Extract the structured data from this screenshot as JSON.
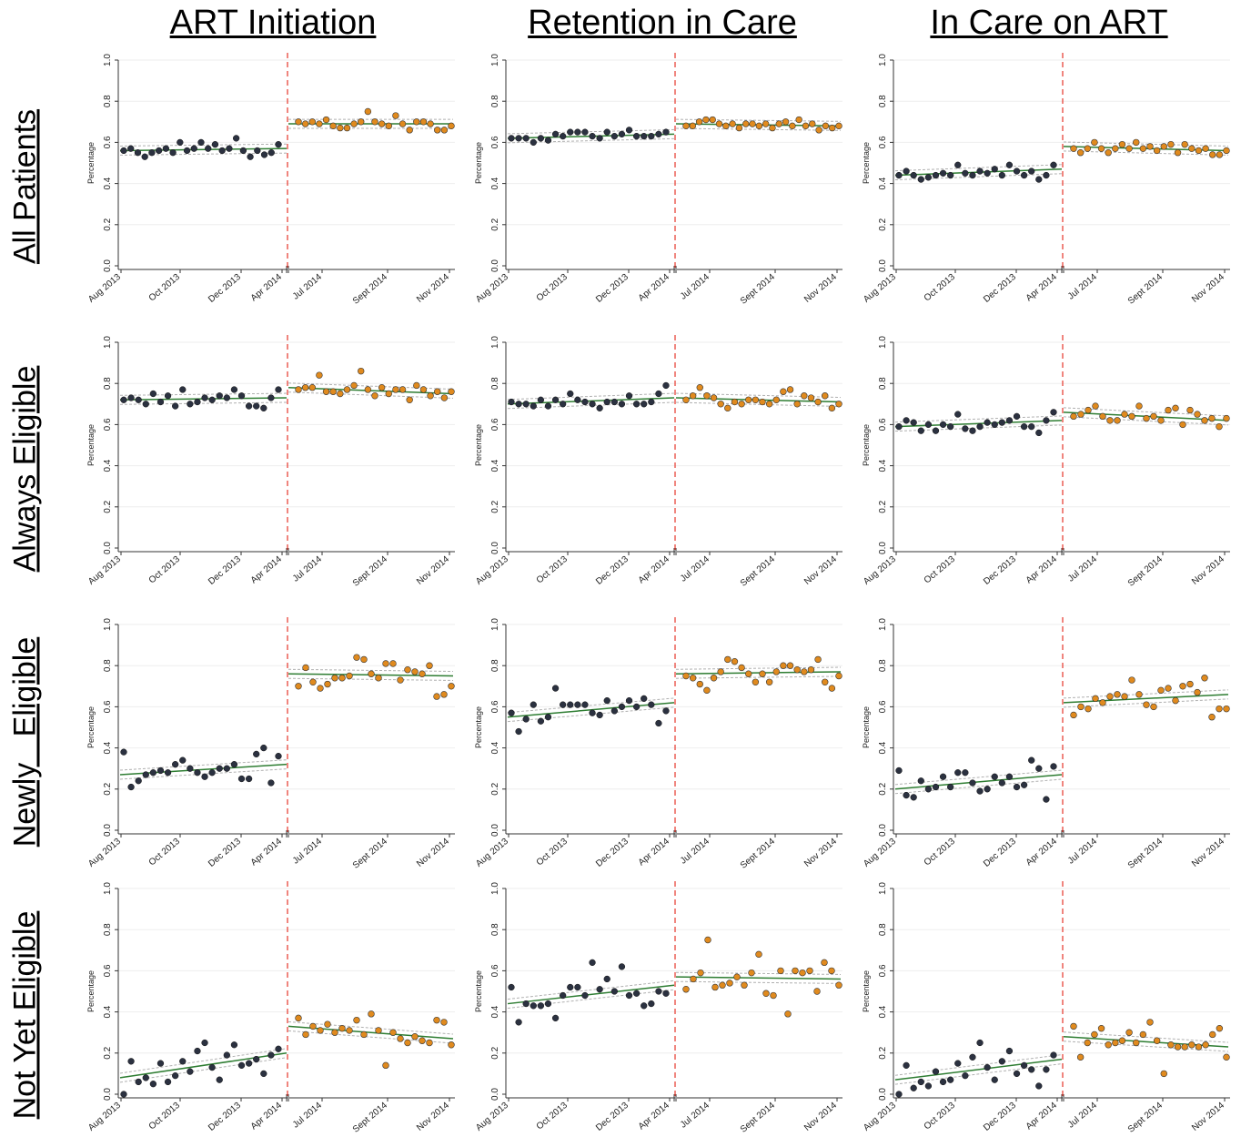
{
  "column_titles": [
    "ART Initiation",
    "Retention in Care",
    "In Care on ART"
  ],
  "row_titles": [
    "All Patients",
    "Always Eligible",
    "Newly   Eligible",
    "Not Yet Eligible"
  ],
  "y_axis_label": "Percentage",
  "y_ticks": [
    "0.0",
    "0.2",
    "0.4",
    "0.6",
    "0.8",
    "1.0"
  ],
  "x_ticks_pre": [
    "Aug 2013",
    "Oct 2013",
    "Dec 2013",
    "Apr 2014"
  ],
  "x_ticks_post": [
    "Jul 2014",
    "Sept 2014",
    "Nov 2014"
  ],
  "colors": {
    "pre": "#2b3140",
    "post": "#e08a1e",
    "fit": "#2e7d32",
    "ci": "#b0b0b0",
    "cutoff": "#e8443a"
  },
  "chart_data": [
    {
      "type": "scatter",
      "row": "All Patients",
      "col": "ART Initiation",
      "ylim": [
        0,
        1
      ],
      "pre": [
        0.56,
        0.57,
        0.55,
        0.53,
        0.55,
        0.56,
        0.57,
        0.55,
        0.6,
        0.56,
        0.57,
        0.6,
        0.57,
        0.59,
        0.56,
        0.57,
        0.62,
        0.56,
        0.53,
        0.56,
        0.54,
        0.55,
        0.59
      ],
      "post": [
        0.7,
        0.69,
        0.7,
        0.69,
        0.71,
        0.68,
        0.67,
        0.67,
        0.69,
        0.7,
        0.75,
        0.7,
        0.69,
        0.68,
        0.73,
        0.69,
        0.66,
        0.7,
        0.7,
        0.69,
        0.66,
        0.66,
        0.68
      ],
      "fit_pre": [
        0.56,
        0.57
      ],
      "fit_post": [
        0.69,
        0.69
      ]
    },
    {
      "type": "scatter",
      "row": "All Patients",
      "col": "Retention in Care",
      "ylim": [
        0,
        1
      ],
      "pre": [
        0.62,
        0.62,
        0.62,
        0.6,
        0.62,
        0.61,
        0.64,
        0.63,
        0.65,
        0.65,
        0.65,
        0.63,
        0.62,
        0.65,
        0.63,
        0.64,
        0.66,
        0.63,
        0.63,
        0.63,
        0.64,
        0.65
      ],
      "post": [
        0.68,
        0.68,
        0.7,
        0.71,
        0.71,
        0.69,
        0.68,
        0.69,
        0.67,
        0.69,
        0.69,
        0.68,
        0.69,
        0.67,
        0.69,
        0.7,
        0.68,
        0.71,
        0.68,
        0.69,
        0.66,
        0.68,
        0.67,
        0.68
      ],
      "fit_pre": [
        0.62,
        0.64
      ],
      "fit_post": [
        0.69,
        0.68
      ]
    },
    {
      "type": "scatter",
      "row": "All Patients",
      "col": "In Care on ART",
      "ylim": [
        0,
        1
      ],
      "pre": [
        0.44,
        0.46,
        0.44,
        0.42,
        0.43,
        0.44,
        0.45,
        0.44,
        0.49,
        0.45,
        0.44,
        0.46,
        0.45,
        0.47,
        0.44,
        0.49,
        0.46,
        0.44,
        0.46,
        0.42,
        0.44,
        0.49
      ],
      "post": [
        0.57,
        0.55,
        0.57,
        0.6,
        0.57,
        0.55,
        0.57,
        0.59,
        0.57,
        0.6,
        0.57,
        0.58,
        0.56,
        0.58,
        0.59,
        0.55,
        0.59,
        0.57,
        0.56,
        0.57,
        0.54,
        0.54,
        0.56
      ],
      "fit_pre": [
        0.44,
        0.47
      ],
      "fit_post": [
        0.58,
        0.56
      ]
    },
    {
      "type": "scatter",
      "row": "Always Eligible",
      "col": "ART Initiation",
      "ylim": [
        0,
        1
      ],
      "pre": [
        0.72,
        0.73,
        0.72,
        0.7,
        0.75,
        0.71,
        0.74,
        0.69,
        0.77,
        0.7,
        0.71,
        0.73,
        0.72,
        0.74,
        0.73,
        0.77,
        0.74,
        0.69,
        0.69,
        0.68,
        0.73,
        0.77
      ],
      "post": [
        0.77,
        0.78,
        0.78,
        0.84,
        0.76,
        0.76,
        0.75,
        0.77,
        0.79,
        0.86,
        0.77,
        0.74,
        0.78,
        0.75,
        0.77,
        0.77,
        0.72,
        0.79,
        0.77,
        0.74,
        0.76,
        0.73,
        0.76
      ],
      "fit_pre": [
        0.72,
        0.73
      ],
      "fit_post": [
        0.78,
        0.75
      ]
    },
    {
      "type": "scatter",
      "row": "Always Eligible",
      "col": "Retention in Care",
      "ylim": [
        0,
        1
      ],
      "pre": [
        0.71,
        0.7,
        0.7,
        0.69,
        0.72,
        0.69,
        0.72,
        0.7,
        0.75,
        0.72,
        0.71,
        0.7,
        0.68,
        0.71,
        0.71,
        0.7,
        0.74,
        0.7,
        0.7,
        0.71,
        0.75,
        0.79
      ],
      "post": [
        0.72,
        0.74,
        0.78,
        0.74,
        0.73,
        0.7,
        0.68,
        0.71,
        0.7,
        0.72,
        0.72,
        0.71,
        0.7,
        0.72,
        0.76,
        0.77,
        0.7,
        0.74,
        0.73,
        0.71,
        0.74,
        0.68,
        0.7
      ],
      "fit_pre": [
        0.7,
        0.73
      ],
      "fit_post": [
        0.73,
        0.71
      ]
    },
    {
      "type": "scatter",
      "row": "Always Eligible",
      "col": "In Care on ART",
      "ylim": [
        0,
        1
      ],
      "pre": [
        0.59,
        0.62,
        0.61,
        0.57,
        0.6,
        0.57,
        0.6,
        0.59,
        0.65,
        0.58,
        0.57,
        0.59,
        0.61,
        0.6,
        0.61,
        0.62,
        0.64,
        0.59,
        0.59,
        0.56,
        0.62,
        0.66
      ],
      "post": [
        0.64,
        0.65,
        0.67,
        0.69,
        0.64,
        0.62,
        0.62,
        0.65,
        0.64,
        0.69,
        0.63,
        0.64,
        0.62,
        0.67,
        0.68,
        0.6,
        0.67,
        0.65,
        0.62,
        0.63,
        0.59,
        0.63
      ],
      "fit_pre": [
        0.59,
        0.62
      ],
      "fit_post": [
        0.66,
        0.62
      ]
    },
    {
      "type": "scatter",
      "row": "Newly   Eligible",
      "col": "ART Initiation",
      "ylim": [
        0,
        1
      ],
      "pre": [
        0.38,
        0.21,
        0.24,
        0.27,
        0.28,
        0.29,
        0.28,
        0.32,
        0.34,
        0.3,
        0.28,
        0.26,
        0.28,
        0.3,
        0.3,
        0.32,
        0.25,
        0.25,
        0.37,
        0.4,
        0.23,
        0.36
      ],
      "post": [
        0.7,
        0.79,
        0.72,
        0.69,
        0.71,
        0.74,
        0.74,
        0.75,
        0.84,
        0.83,
        0.76,
        0.74,
        0.81,
        0.81,
        0.73,
        0.78,
        0.77,
        0.76,
        0.8,
        0.65,
        0.66,
        0.7
      ],
      "fit_pre": [
        0.27,
        0.32
      ],
      "fit_post": [
        0.76,
        0.75
      ]
    },
    {
      "type": "scatter",
      "row": "Newly   Eligible",
      "col": "Retention in Care",
      "ylim": [
        0,
        1
      ],
      "pre": [
        0.57,
        0.48,
        0.54,
        0.61,
        0.53,
        0.55,
        0.69,
        0.61,
        0.61,
        0.61,
        0.61,
        0.57,
        0.56,
        0.63,
        0.58,
        0.6,
        0.63,
        0.6,
        0.64,
        0.61,
        0.52,
        0.58
      ],
      "post": [
        0.75,
        0.74,
        0.71,
        0.68,
        0.74,
        0.77,
        0.83,
        0.82,
        0.79,
        0.76,
        0.72,
        0.76,
        0.72,
        0.77,
        0.8,
        0.8,
        0.78,
        0.77,
        0.78,
        0.83,
        0.72,
        0.69,
        0.75
      ],
      "fit_pre": [
        0.55,
        0.62
      ],
      "fit_post": [
        0.76,
        0.77
      ]
    },
    {
      "type": "scatter",
      "row": "Newly   Eligible",
      "col": "In Care on ART",
      "ylim": [
        0,
        1
      ],
      "pre": [
        0.29,
        0.17,
        0.16,
        0.24,
        0.2,
        0.21,
        0.26,
        0.21,
        0.28,
        0.28,
        0.23,
        0.19,
        0.2,
        0.26,
        0.23,
        0.26,
        0.21,
        0.22,
        0.34,
        0.3,
        0.15,
        0.31
      ],
      "post": [
        0.56,
        0.6,
        0.59,
        0.64,
        0.62,
        0.65,
        0.66,
        0.65,
        0.73,
        0.66,
        0.61,
        0.6,
        0.68,
        0.69,
        0.63,
        0.7,
        0.71,
        0.67,
        0.74,
        0.55,
        0.59,
        0.59
      ],
      "fit_pre": [
        0.2,
        0.27
      ],
      "fit_post": [
        0.62,
        0.66
      ]
    },
    {
      "type": "scatter",
      "row": "Not Yet Eligible",
      "col": "ART Initiation",
      "ylim": [
        0,
        1
      ],
      "pre": [
        0.0,
        0.16,
        0.06,
        0.08,
        0.05,
        0.15,
        0.06,
        0.09,
        0.16,
        0.11,
        0.21,
        0.25,
        0.13,
        0.07,
        0.19,
        0.24,
        0.14,
        0.15,
        0.17,
        0.1,
        0.19,
        0.22
      ],
      "post": [
        0.37,
        0.29,
        0.33,
        0.31,
        0.34,
        0.3,
        0.32,
        0.31,
        0.36,
        0.29,
        0.39,
        0.31,
        0.14,
        0.3,
        0.27,
        0.25,
        0.28,
        0.26,
        0.25,
        0.36,
        0.35,
        0.24
      ],
      "fit_pre": [
        0.08,
        0.2
      ],
      "fit_post": [
        0.33,
        0.27
      ]
    },
    {
      "type": "scatter",
      "row": "Not Yet Eligible",
      "col": "Retention in Care",
      "ylim": [
        0,
        1
      ],
      "pre": [
        0.52,
        0.35,
        0.44,
        0.43,
        0.43,
        0.44,
        0.37,
        0.48,
        0.52,
        0.52,
        0.48,
        0.64,
        0.51,
        0.56,
        0.5,
        0.62,
        0.48,
        0.49,
        0.43,
        0.44,
        0.5,
        0.49
      ],
      "post": [
        0.51,
        0.56,
        0.59,
        0.75,
        0.52,
        0.53,
        0.54,
        0.57,
        0.53,
        0.59,
        0.68,
        0.49,
        0.48,
        0.6,
        0.39,
        0.6,
        0.59,
        0.6,
        0.5,
        0.64,
        0.6,
        0.53
      ],
      "fit_pre": [
        0.44,
        0.53
      ],
      "fit_post": [
        0.57,
        0.56
      ]
    },
    {
      "type": "scatter",
      "row": "Not Yet Eligible",
      "col": "In Care on ART",
      "ylim": [
        0,
        1
      ],
      "pre": [
        0.0,
        0.14,
        0.03,
        0.06,
        0.04,
        0.11,
        0.06,
        0.07,
        0.15,
        0.09,
        0.18,
        0.25,
        0.13,
        0.07,
        0.16,
        0.21,
        0.1,
        0.14,
        0.12,
        0.04,
        0.12,
        0.19
      ],
      "post": [
        0.33,
        0.18,
        0.25,
        0.29,
        0.32,
        0.24,
        0.25,
        0.26,
        0.3,
        0.25,
        0.29,
        0.35,
        0.26,
        0.1,
        0.24,
        0.23,
        0.23,
        0.24,
        0.23,
        0.24,
        0.29,
        0.32,
        0.18
      ],
      "fit_pre": [
        0.07,
        0.17
      ],
      "fit_post": [
        0.28,
        0.23
      ]
    }
  ]
}
